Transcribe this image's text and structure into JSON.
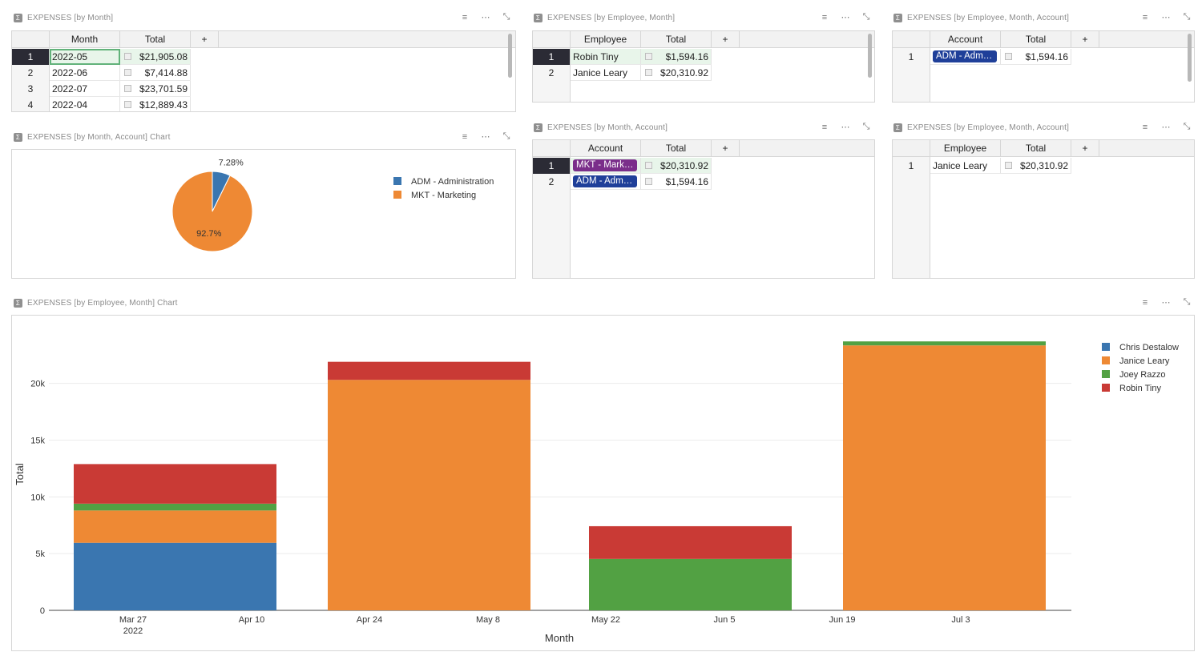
{
  "widgets": {
    "by_month": {
      "title": "EXPENSES [by Month]",
      "columns": [
        "Month",
        "Total",
        "+"
      ],
      "rows": [
        {
          "n": "1",
          "a": "2022-05",
          "b": "$21,905.08"
        },
        {
          "n": "2",
          "a": "2022-06",
          "b": "$7,414.88"
        },
        {
          "n": "3",
          "a": "2022-07",
          "b": "$23,701.59"
        },
        {
          "n": "4",
          "a": "2022-04",
          "b": "$12,889.43"
        }
      ]
    },
    "by_emp_month": {
      "title": "EXPENSES [by Employee, Month]",
      "columns": [
        "Employee",
        "Total",
        "+"
      ],
      "rows": [
        {
          "n": "1",
          "a": "Robin Tiny",
          "b": "$1,594.16"
        },
        {
          "n": "2",
          "a": "Janice Leary",
          "b": "$20,310.92"
        }
      ]
    },
    "by_emp_month_acct_top": {
      "title": "EXPENSES [by Employee, Month, Account]",
      "columns": [
        "Account",
        "Total",
        "+"
      ],
      "rows": [
        {
          "n": "1",
          "a": "ADM - Administration",
          "b": "$1,594.16"
        }
      ]
    },
    "by_month_acct_chart": {
      "title": "EXPENSES [by Month, Account] Chart"
    },
    "by_month_acct": {
      "title": "EXPENSES [by Month, Account]",
      "columns": [
        "Account",
        "Total",
        "+"
      ],
      "rows": [
        {
          "n": "1",
          "a": "MKT - Marketing",
          "b": "$20,310.92"
        },
        {
          "n": "2",
          "a": "ADM - Administration",
          "b": "$1,594.16"
        }
      ]
    },
    "by_emp_month_acct_bottom": {
      "title": "EXPENSES [by Employee, Month, Account]",
      "columns": [
        "Employee",
        "Total",
        "+"
      ],
      "rows": [
        {
          "n": "1",
          "a": "Janice Leary",
          "b": "$20,310.92"
        }
      ]
    },
    "by_emp_month_chart": {
      "title": "EXPENSES [by Employee, Month] Chart"
    }
  },
  "colors": {
    "blue": "#3a76b0",
    "orange": "#ee8934",
    "green": "#52a143",
    "red": "#c93a35",
    "chip_purple": "#7a2e8a",
    "chip_blue": "#1f3f99"
  },
  "chart_data": [
    {
      "type": "pie",
      "title": "",
      "labels": [
        "ADM - Administration",
        "MKT - Marketing"
      ],
      "values": [
        7.28,
        92.7
      ],
      "value_labels": [
        "7.28%",
        "92.7%"
      ],
      "colors": [
        "#3a76b0",
        "#ee8934"
      ],
      "legend": "right"
    },
    {
      "type": "bar",
      "stacked": true,
      "xlabel": "Month",
      "ylabel": "Total",
      "x": [
        "2022-04",
        "2022-05",
        "2022-06",
        "2022-07"
      ],
      "x_ticks": [
        "Mar 27\n2022",
        "Apr 10",
        "Apr 24",
        "May 8",
        "May 22",
        "Jun 5",
        "Jun 19",
        "Jul 3"
      ],
      "y_ticks": [
        "0",
        "5k",
        "10k",
        "15k",
        "20k"
      ],
      "ylim": [
        0,
        24000
      ],
      "series": [
        {
          "name": "Chris Destalow",
          "color": "#3a76b0",
          "values": [
            5950,
            0,
            0,
            0
          ]
        },
        {
          "name": "Janice Leary",
          "color": "#ee8934",
          "values": [
            2850,
            20310.92,
            0,
            23350
          ]
        },
        {
          "name": "Joey Razzo",
          "color": "#52a143",
          "values": [
            600,
            0,
            4530,
            351.59
          ]
        },
        {
          "name": "Robin Tiny",
          "color": "#c93a35",
          "values": [
            3489.43,
            1594.16,
            2884.88,
            0
          ]
        }
      ],
      "grid": true,
      "legend": "top-right"
    }
  ]
}
